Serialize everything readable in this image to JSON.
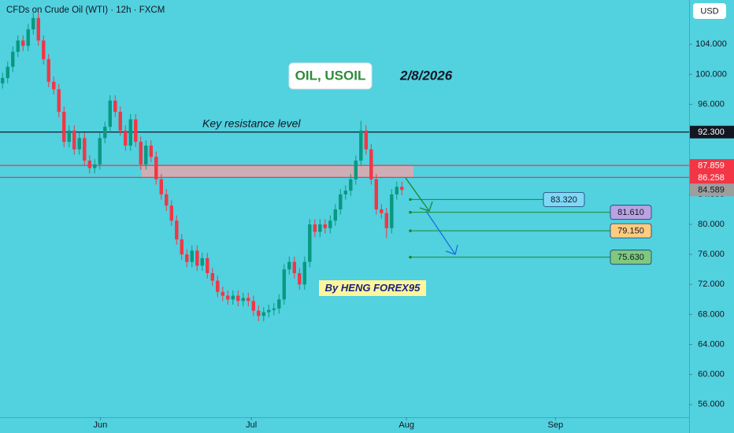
{
  "chart_data": {
    "type": "candlestick",
    "title": "CFDs on Crude Oil (WTI) · 12h · FXCM",
    "currency": "USD",
    "annotations": {
      "symbol": "OIL, USOIL",
      "date": "2/8/2026",
      "resistance": "Key resistance level",
      "author": "By HENG FOREX95"
    },
    "up_color": "#089981",
    "down_color": "#f23645",
    "x": [
      0,
      1,
      2,
      3,
      4,
      5,
      6,
      7,
      8,
      9,
      10,
      11,
      12,
      13,
      14,
      15,
      16,
      17,
      18,
      19,
      20,
      21,
      22,
      23,
      24,
      25,
      26,
      27,
      28,
      29,
      30,
      31,
      32,
      33,
      34,
      35,
      36,
      37,
      38,
      39,
      40,
      41,
      42,
      43,
      44,
      45,
      46,
      47,
      48,
      49,
      50,
      51,
      52,
      53,
      54,
      55,
      56,
      57,
      58,
      59,
      60,
      61,
      62,
      63,
      64,
      65,
      66,
      67,
      68,
      69,
      70,
      71,
      72,
      73,
      74,
      75,
      76,
      77,
      78
    ],
    "open": [
      98.8,
      99.5,
      101,
      103,
      104.5,
      103.8,
      106,
      107.5,
      104.5,
      102,
      99,
      98,
      95,
      91,
      92.5,
      90,
      91.5,
      88.5,
      87.5,
      88,
      91.5,
      93,
      96.5,
      95,
      92.5,
      90.5,
      94,
      91,
      88,
      90.5,
      89,
      86,
      84,
      82.5,
      80.5,
      78,
      76,
      75,
      76.5,
      74.5,
      75.5,
      73.5,
      72.5,
      71,
      70.5,
      70,
      70.5,
      69.8,
      70.2,
      69.8,
      68.5,
      67.8,
      68.3,
      68.6,
      68.8,
      70,
      74,
      75,
      73.5,
      72,
      75,
      80,
      79,
      80,
      79.5,
      80.5,
      82,
      84,
      84.5,
      86,
      88.5,
      92.5,
      90,
      86,
      82,
      81.5,
      79.5,
      84,
      85
    ],
    "high": [
      100.2,
      101.7,
      103.7,
      105.2,
      105.2,
      106.7,
      108.2,
      108.2,
      105.2,
      102.7,
      99.7,
      98.7,
      95.7,
      93.2,
      93.2,
      92.2,
      92.2,
      89.2,
      88.7,
      92.2,
      93.7,
      97.2,
      97.2,
      95.7,
      93.2,
      94.7,
      94.7,
      91.7,
      91.2,
      91.2,
      89.7,
      86.7,
      84.7,
      83.2,
      81.2,
      78.7,
      76.7,
      77.2,
      77.2,
      76.2,
      76.2,
      74.2,
      73.2,
      71.7,
      71.2,
      71.2,
      71.2,
      70.9,
      70.9,
      70.5,
      69.2,
      69,
      69.3,
      69.5,
      70.7,
      74.7,
      75.7,
      75.7,
      74.2,
      75.7,
      80.7,
      80.7,
      80.7,
      80.7,
      81.2,
      82.7,
      84.7,
      85.2,
      86.7,
      89.2,
      93.8,
      93.2,
      90.7,
      86.7,
      82.7,
      82.2,
      84.7,
      85.7,
      85.7
    ],
    "low": [
      98.1,
      98.8,
      100.3,
      102.3,
      103.1,
      103.1,
      105.3,
      103.8,
      101.3,
      98.3,
      97.3,
      94.3,
      90.3,
      90.3,
      89.3,
      89.3,
      87.8,
      86.8,
      86.8,
      87.3,
      90.8,
      92.3,
      94.3,
      91.8,
      89.8,
      89.8,
      90.3,
      87.3,
      87.3,
      88.3,
      85.3,
      83.3,
      81.8,
      79.8,
      77.3,
      75.3,
      74.3,
      74.3,
      73.8,
      73.8,
      72.8,
      71.8,
      70.3,
      69.8,
      69.3,
      69.3,
      69.1,
      69.1,
      69.1,
      67.8,
      67.1,
      67.1,
      67.6,
      67.9,
      68.1,
      69.3,
      73.3,
      72.8,
      71.3,
      71.3,
      74.3,
      78.3,
      78.3,
      78.8,
      78.8,
      79.8,
      81.3,
      83.3,
      83.8,
      85.3,
      87.8,
      89.3,
      85.3,
      81.3,
      80.8,
      78.2,
      78.8,
      83.3,
      83.9
    ],
    "close": [
      99.5,
      101,
      103,
      104.5,
      103.8,
      106,
      107.5,
      104.5,
      102,
      99,
      98,
      95,
      91,
      92.5,
      90,
      91.5,
      88.5,
      87.5,
      88,
      91.5,
      93,
      96.5,
      95,
      92.5,
      90.5,
      94,
      91,
      88,
      90.5,
      89,
      86,
      84,
      82.5,
      80.5,
      78,
      76,
      75,
      76.5,
      74.5,
      75.5,
      73.5,
      72.5,
      71,
      70.5,
      70,
      70.5,
      69.8,
      70.2,
      69.8,
      68.5,
      67.8,
      68.3,
      68.6,
      68.8,
      70,
      74,
      75,
      73.5,
      72,
      75,
      80,
      79,
      80,
      79.5,
      80.5,
      82,
      84,
      84.5,
      86,
      88.5,
      92.5,
      90,
      86,
      82,
      81.5,
      79.5,
      84,
      85,
      84.6
    ],
    "xlim": [
      -0.5,
      134.1
    ],
    "xticks": [
      {
        "value": 19.1,
        "label": "Jun"
      },
      {
        "value": 48.6,
        "label": "Jul"
      },
      {
        "value": 78.9,
        "label": "Aug"
      },
      {
        "value": 108,
        "label": "Sep"
      }
    ],
    "ylim": [
      54.3,
      109.9
    ],
    "yticks": [
      {
        "value": 56,
        "label": "56.000"
      },
      {
        "value": 60,
        "label": "60.000"
      },
      {
        "value": 64,
        "label": "64.000"
      },
      {
        "value": 68,
        "label": "68.000"
      },
      {
        "value": 72,
        "label": "72.000"
      },
      {
        "value": 76,
        "label": "76.000"
      },
      {
        "value": 80,
        "label": "80.000"
      },
      {
        "value": 84,
        "label": "84.000"
      },
      {
        "value": 96,
        "label": "96.000"
      },
      {
        "value": 100,
        "label": "100.000"
      },
      {
        "value": 104,
        "label": "104.000"
      }
    ],
    "levels": [
      {
        "price": {
          "value": 92.3,
          "label": "92.300"
        },
        "color": "#131722",
        "text_color": "#ffffff",
        "line": true
      },
      {
        "price": 87.859,
        "color": "#f23645",
        "text_color": "#ffffff",
        "line": true
      },
      {
        "price": 86.258,
        "color": "#f23645",
        "text_color": "#ffffff",
        "line": true
      },
      {
        "price": 84.589,
        "color": "#9e9e9e",
        "text_color": "#131722",
        "line": false
      }
    ],
    "targets": [
      {
        "price": {
          "value": 83.32,
          "label": "83.320"
        },
        "color": "#7fd8f6"
      },
      {
        "price": {
          "value": 81.61,
          "label": "81.610"
        },
        "color": "#b9a3e3"
      },
      {
        "price": {
          "value": 79.15,
          "label": "79.150"
        },
        "color": "#ffcc80"
      },
      {
        "price": {
          "value": 75.63,
          "label": "75.630"
        },
        "color": "#7fc97f"
      }
    ]
  }
}
